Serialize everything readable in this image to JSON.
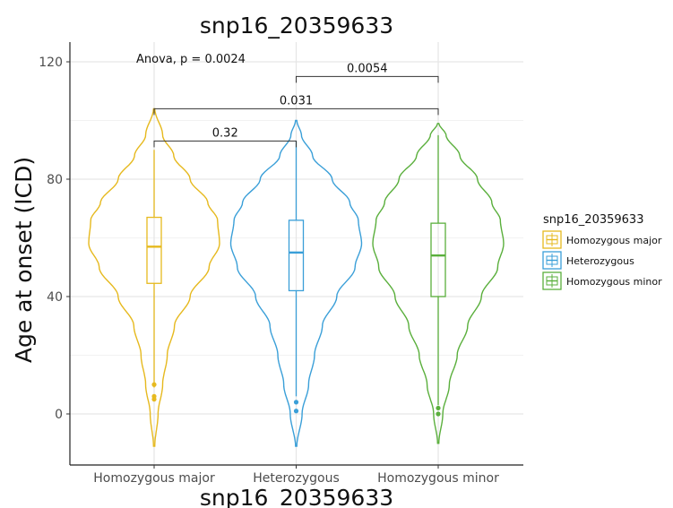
{
  "chart_data": {
    "type": "violin",
    "title": "snp16_20359633",
    "xlabel": "snp16_20359633",
    "ylabel": "Age at onset (ICD)",
    "ylim": [
      -17,
      127
    ],
    "yticks": [
      0,
      40,
      80,
      120
    ],
    "grid": true,
    "categories": [
      "Homozygous major",
      "Heterozygous",
      "Homozygous minor"
    ],
    "colors": [
      "#E6B91E",
      "#3A9FD8",
      "#5AAF3C"
    ],
    "series": [
      {
        "category": "Homozygous major",
        "color": "#E6B91E",
        "box": {
          "whisker_low": 9,
          "q1": 44.5,
          "median": 57,
          "q3": 67,
          "whisker_high": 90
        },
        "outliers": [
          10,
          6,
          5
        ],
        "violin": {
          "min": -11,
          "max": 104,
          "profile": [
            [
              -11,
              0.01
            ],
            [
              0,
              0.06
            ],
            [
              10,
              0.13
            ],
            [
              20,
              0.2
            ],
            [
              30,
              0.31
            ],
            [
              40,
              0.55
            ],
            [
              50,
              0.84
            ],
            [
              58,
              1.0
            ],
            [
              66,
              0.97
            ],
            [
              72,
              0.82
            ],
            [
              80,
              0.55
            ],
            [
              88,
              0.3
            ],
            [
              95,
              0.13
            ],
            [
              104,
              0.01
            ]
          ]
        }
      },
      {
        "category": "Heterozygous",
        "color": "#3A9FD8",
        "box": {
          "whisker_low": 6,
          "q1": 42,
          "median": 55,
          "q3": 66,
          "whisker_high": 93
        },
        "outliers": [
          4,
          1
        ],
        "violin": {
          "min": -11,
          "max": 100,
          "profile": [
            [
              -11,
              0.01
            ],
            [
              0,
              0.09
            ],
            [
              10,
              0.19
            ],
            [
              20,
              0.28
            ],
            [
              30,
              0.4
            ],
            [
              40,
              0.62
            ],
            [
              50,
              0.9
            ],
            [
              58,
              1.0
            ],
            [
              66,
              0.95
            ],
            [
              72,
              0.82
            ],
            [
              80,
              0.55
            ],
            [
              88,
              0.25
            ],
            [
              95,
              0.08
            ],
            [
              100,
              0.01
            ]
          ]
        }
      },
      {
        "category": "Homozygous minor",
        "color": "#5AAF3C",
        "box": {
          "whisker_low": 3,
          "q1": 40,
          "median": 54,
          "q3": 65,
          "whisker_high": 95
        },
        "outliers": [
          2,
          0
        ],
        "violin": {
          "min": -10,
          "max": 99,
          "profile": [
            [
              -10,
              0.01
            ],
            [
              0,
              0.07
            ],
            [
              10,
              0.17
            ],
            [
              20,
              0.29
            ],
            [
              30,
              0.45
            ],
            [
              40,
              0.66
            ],
            [
              50,
              0.91
            ],
            [
              58,
              1.0
            ],
            [
              66,
              0.95
            ],
            [
              72,
              0.82
            ],
            [
              80,
              0.6
            ],
            [
              88,
              0.33
            ],
            [
              95,
              0.12
            ],
            [
              99,
              0.01
            ]
          ]
        }
      }
    ],
    "comparisons": [
      {
        "from": "Homozygous major",
        "to": "Heterozygous",
        "label": "0.32",
        "y": 93
      },
      {
        "from": "Homozygous major",
        "to": "Homozygous minor",
        "label": "0.031",
        "y": 104
      },
      {
        "from": "Heterozygous",
        "to": "Homozygous minor",
        "label": "0.0054",
        "y": 115
      }
    ],
    "annotation": "Anova, p = 0.0024",
    "legend": {
      "title": "snp16_20359633",
      "position": "right",
      "items": [
        "Homozygous major",
        "Heterozygous",
        "Homozygous minor"
      ]
    }
  }
}
